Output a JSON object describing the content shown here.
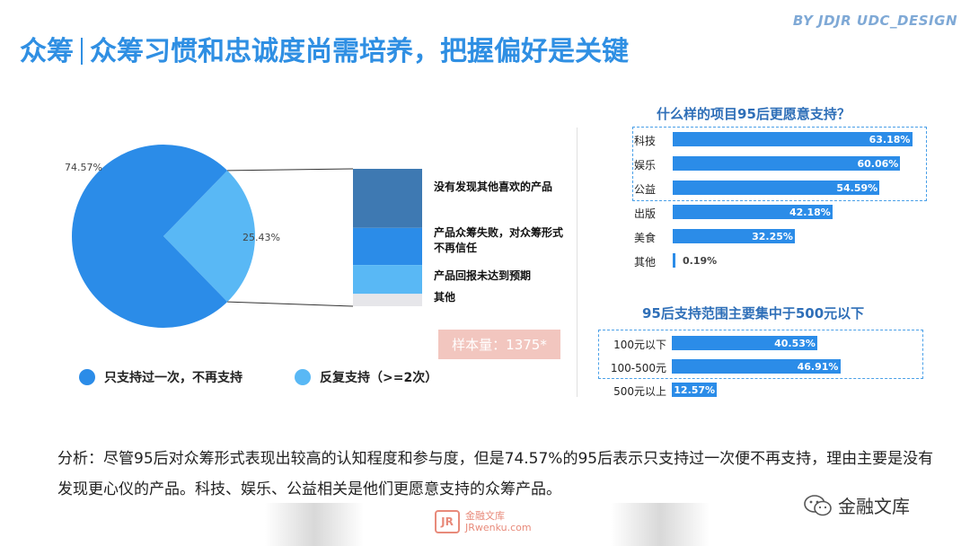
{
  "header": {
    "title_prefix": "众筹",
    "title_main": "众筹习惯和忠诚度尚需培养，把握偏好是关键",
    "credit": "BY JDJR UDC_DESIGN"
  },
  "pie": {
    "slices": [
      {
        "label": "只支持过一次，不再支持",
        "value": 74.57,
        "value_label": "74.57%",
        "color": "#2b8ce8"
      },
      {
        "label": "反复支持（>=2次）",
        "value": 25.43,
        "value_label": "25.43%",
        "color": "#59b8f5"
      }
    ]
  },
  "reasons": {
    "items": [
      {
        "label": "没有发现其他喜欢的产品",
        "share": 0.43,
        "color": "#3e79b2"
      },
      {
        "label": "产品众筹失败，对众筹形式不再信任",
        "share": 0.27,
        "color": "#2b8ce8"
      },
      {
        "label": "产品回报未达到预期",
        "share": 0.21,
        "color": "#59b8f5"
      },
      {
        "label": "其他",
        "share": 0.09,
        "color": "#e6e6ea"
      }
    ]
  },
  "sample": "样本量：1375*",
  "chart_data": [
    {
      "type": "pie",
      "title": "",
      "categories": [
        "只支持过一次，不再支持",
        "反复支持（>=2次）"
      ],
      "values": [
        74.57,
        25.43
      ],
      "legend": "bottom"
    },
    {
      "type": "bar",
      "orientation": "horizontal",
      "title": "什么样的项目95后更愿意支持？",
      "categories": [
        "科技",
        "娱乐",
        "公益",
        "出版",
        "美食",
        "其他"
      ],
      "values": [
        63.18,
        60.06,
        54.59,
        42.18,
        32.25,
        0.19
      ],
      "value_labels": [
        "63.18%",
        "60.06%",
        "54.59%",
        "42.18%",
        "32.25%",
        "0.19%"
      ],
      "highlighted": [
        "科技",
        "娱乐",
        "公益"
      ],
      "xlim": [
        0,
        100
      ],
      "bar_color": "#2b8ce8"
    },
    {
      "type": "bar",
      "orientation": "horizontal",
      "title": "95后支持范围主要集中于500元以下",
      "categories": [
        "100元以下",
        "100-500元",
        "500元以上"
      ],
      "values": [
        40.53,
        46.91,
        12.57
      ],
      "value_labels": [
        "40.53%",
        "46.91%",
        "12.57%"
      ],
      "highlighted": [
        "100元以下",
        "100-500元"
      ],
      "xlim": [
        0,
        100
      ],
      "bar_color": "#2b8ce8"
    }
  ],
  "analysis": "分析：尽管95后对众筹形式表现出较高的认知程度和参与度，但是74.57%的95后表示只支持过一次便不再支持，理由主要是没有发现更心仪的产品。科技、娱乐、公益相关是他们更愿意支持的众筹产品。",
  "watermark": {
    "logo": "JR",
    "name": "金融文库",
    "url": "JRwenku.com"
  },
  "wechat_account": "金融文库"
}
